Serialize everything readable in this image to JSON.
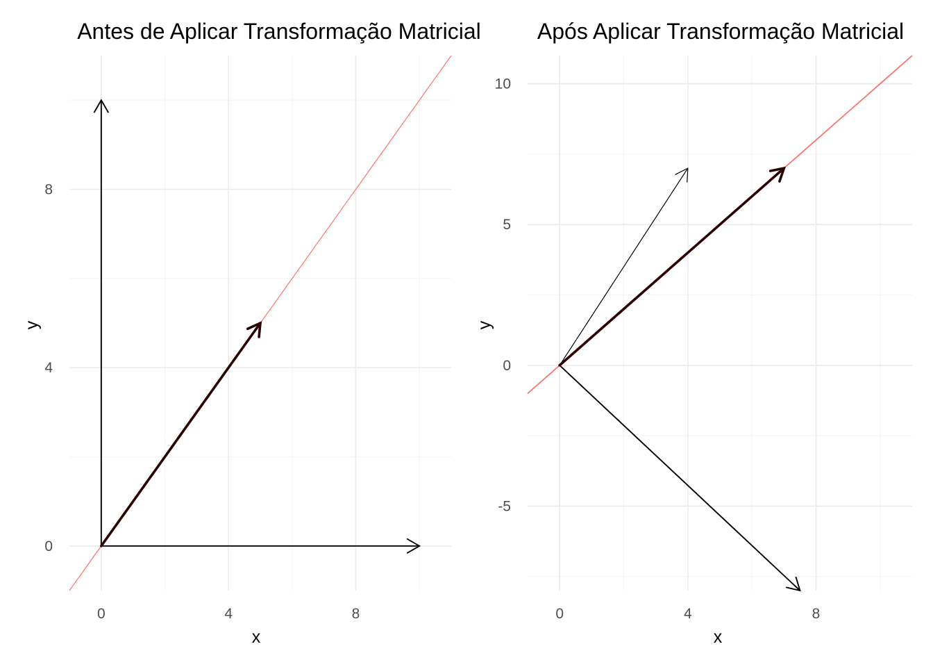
{
  "chart_data": [
    {
      "type": "vector-plot",
      "title": "Antes de Aplicar Transformação Matricial",
      "xlabel": "x",
      "ylabel": "y",
      "xlim": [
        -1,
        11
      ],
      "ylim": [
        -1,
        11
      ],
      "xticks": [
        0,
        4,
        8
      ],
      "yticks": [
        0,
        4,
        8
      ],
      "grid": true,
      "line": {
        "from": [
          -1,
          -1
        ],
        "to": [
          11,
          11
        ],
        "color": "#f8766d"
      },
      "vectors": [
        {
          "from": [
            0,
            0
          ],
          "to": [
            10,
            0
          ],
          "color": "#000000",
          "weight": "normal"
        },
        {
          "from": [
            0,
            0
          ],
          "to": [
            0,
            10
          ],
          "color": "#000000",
          "weight": "normal"
        },
        {
          "from": [
            0,
            0
          ],
          "to": [
            5,
            5
          ],
          "color": "#2b0000",
          "weight": "bold"
        }
      ]
    },
    {
      "type": "vector-plot",
      "title": "Após Aplicar Transformação Matricial",
      "xlabel": "x",
      "ylabel": "y",
      "xlim": [
        -1,
        11
      ],
      "ylim": [
        -8,
        11
      ],
      "xticks": [
        0,
        4,
        8
      ],
      "yticks": [
        -5,
        0,
        5,
        10
      ],
      "grid": true,
      "line": {
        "from": [
          -1,
          -1
        ],
        "to": [
          11,
          11
        ],
        "color": "#f8766d"
      },
      "vectors": [
        {
          "from": [
            0,
            0
          ],
          "to": [
            4,
            7
          ],
          "color": "#000000",
          "weight": "thin"
        },
        {
          "from": [
            0,
            0
          ],
          "to": [
            7.5,
            -8
          ],
          "color": "#000000",
          "weight": "normal"
        },
        {
          "from": [
            0,
            0
          ],
          "to": [
            7,
            7
          ],
          "color": "#2b0000",
          "weight": "bold"
        }
      ]
    }
  ]
}
